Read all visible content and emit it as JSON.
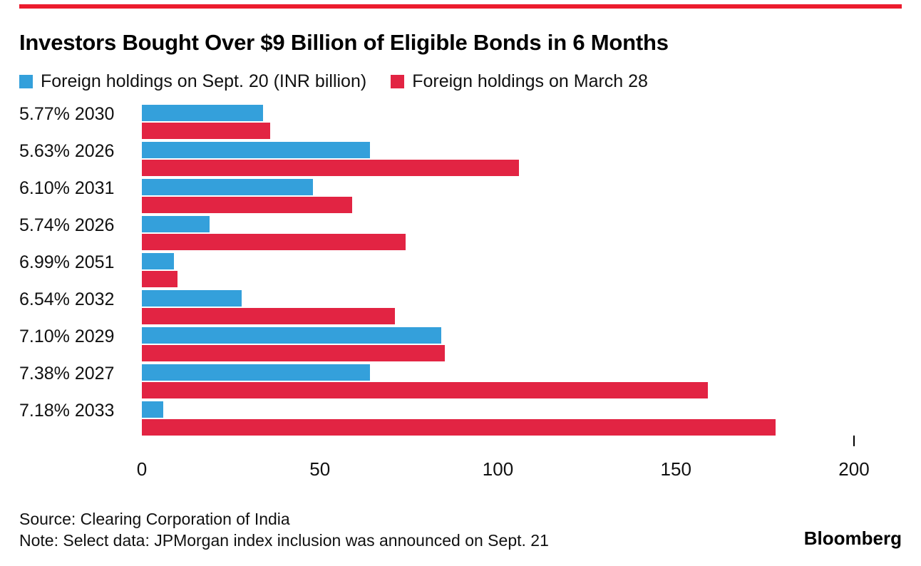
{
  "chart_data": {
    "type": "bar",
    "orientation": "horizontal",
    "title": "Investors Bought Over $9 Billion of Eligible Bonds in 6 Months",
    "categories": [
      "5.77% 2030",
      "5.63% 2026",
      "6.10% 2031",
      "5.74% 2026",
      "6.99% 2051",
      "6.54% 2032",
      "7.10% 2029",
      "7.38% 2027",
      "7.18% 2033"
    ],
    "series": [
      {
        "name": "Foreign holdings on Sept. 20 (INR billion)",
        "color": "#34A0DB",
        "values": [
          34,
          64,
          48,
          19,
          9,
          28,
          84,
          64,
          6
        ]
      },
      {
        "name": "Foreign holdings on March 28",
        "color": "#E22443",
        "values": [
          36,
          106,
          59,
          74,
          10,
          71,
          85,
          159,
          178
        ]
      }
    ],
    "xlim": [
      0,
      200
    ],
    "x_ticks": [
      "0",
      "50",
      "100",
      "150",
      "200"
    ],
    "tick_values": [
      0,
      50,
      100,
      150,
      200
    ],
    "visible_tick_mark": 200,
    "legend_position": "top-left",
    "grid": false,
    "xlabel": "",
    "ylabel": ""
  },
  "footer": {
    "source": "Source: Clearing Corporation of India",
    "note": "Note: Select data: JPMorgan index inclusion was announced on Sept. 21",
    "branding": "Bloomberg"
  },
  "colors": {
    "top_rule": "#EC1C2E",
    "text": "#000000",
    "background": "#FFFFFF"
  }
}
